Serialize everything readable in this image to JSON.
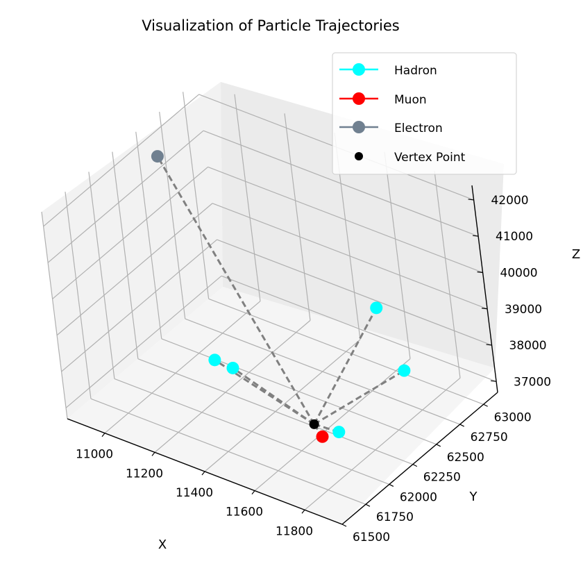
{
  "chart_data": {
    "type": "scatter",
    "projection": "3d",
    "title": "Visualization of Particle Trajectories",
    "xlabel": "X",
    "ylabel": "Y",
    "zlabel": "Z",
    "x_ticks": [
      "11000",
      "11200",
      "11400",
      "11600",
      "11800"
    ],
    "y_ticks": [
      "61500",
      "61750",
      "62000",
      "62250",
      "62500",
      "62750",
      "63000"
    ],
    "z_ticks": [
      "37000",
      "38000",
      "39000",
      "40000",
      "41000",
      "42000"
    ],
    "grid": true,
    "legend_placement": "top-right",
    "vertex": {
      "name": "Vertex Point",
      "color": "#000000",
      "x": 11600,
      "y": 62150,
      "z": 37100
    },
    "series": [
      {
        "name": "Hadron",
        "color": "#00ffff",
        "points": [
          {
            "x": 11150,
            "y": 62300,
            "z": 37350
          },
          {
            "x": 11200,
            "y": 62350,
            "z": 37150
          },
          {
            "x": 11700,
            "y": 62150,
            "z": 37150
          },
          {
            "x": 11700,
            "y": 62850,
            "z": 37300
          },
          {
            "x": 11550,
            "y": 63000,
            "z": 38300
          }
        ]
      },
      {
        "name": "Muon",
        "color": "#ff0000",
        "points": [
          {
            "x": 11650,
            "y": 62100,
            "z": 37000
          }
        ]
      },
      {
        "name": "Electron",
        "color": "#708090",
        "points": [
          {
            "x": 10950,
            "y": 62450,
            "z": 42100
          }
        ]
      }
    ],
    "trajectory_line_color": "#808080",
    "trajectory_line_style": "dashed"
  }
}
